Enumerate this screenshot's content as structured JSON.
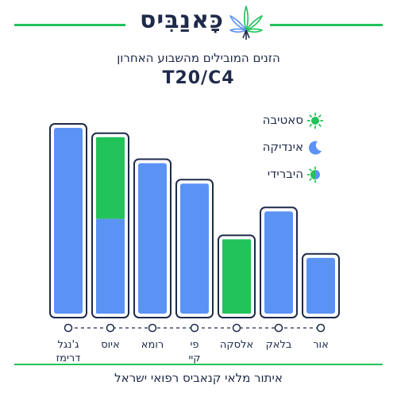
{
  "brand": {
    "name": "כָּאנַבִּיס",
    "logo_icon": "cannabis-leaf-icon"
  },
  "header": {
    "subtitle": "הזנים המובילים מהשבוע האחרון",
    "title": "T20/C4"
  },
  "legend": [
    {
      "label": "סאטיבה",
      "icon": "sun-icon",
      "color": "#21c35a"
    },
    {
      "label": "אינדיקה",
      "icon": "moon-icon",
      "color": "#5b93f5"
    },
    {
      "label": "היברידי",
      "icon": "half-sun-moon-icon",
      "color": "#21c35a"
    }
  ],
  "colors": {
    "sativa": "#21c35a",
    "indica": "#5b93f5",
    "frame": "#1f2a4a",
    "accent": "#21c35a"
  },
  "chart_data": {
    "type": "bar",
    "categories": [
      "ג'נגל דרימז",
      "איוס",
      "רומא",
      "פי קיי",
      "אלסקה",
      "בלאק",
      "אור"
    ],
    "series": [
      {
        "name": "אינדיקה",
        "values": [
          1.0,
          0.51,
          0.81,
          0.7,
          0,
          0.55,
          0.3
        ]
      },
      {
        "name": "סאטיבה",
        "values": [
          0,
          0.44,
          0,
          0,
          0.4,
          0,
          0
        ]
      }
    ],
    "stacked": true,
    "ylim": [
      0,
      1
    ],
    "grid": false,
    "legend_position": "top-right"
  },
  "footer": {
    "text": "איתור מלאי קנאביס רפואי ישראל"
  }
}
